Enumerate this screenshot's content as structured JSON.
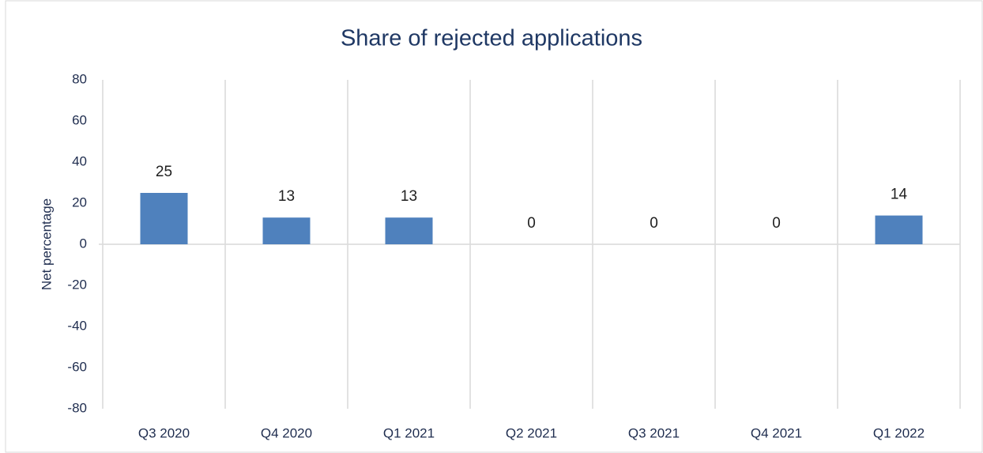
{
  "chart_data": {
    "type": "bar",
    "title": "Share of rejected applications",
    "y_label": "Net percentage",
    "categories": [
      "Q3 2020",
      "Q4 2020",
      "Q1 2021",
      "Q2 2021",
      "Q3 2021",
      "Q4 2021",
      "Q1 2022"
    ],
    "values": [
      25,
      13,
      13,
      0,
      0,
      0,
      14
    ],
    "color": "#4f81bd",
    "ylim": [
      -80,
      80
    ],
    "yticks": [
      -80,
      -60,
      -40,
      -20,
      0,
      20,
      40,
      60,
      80
    ],
    "grid": true
  }
}
